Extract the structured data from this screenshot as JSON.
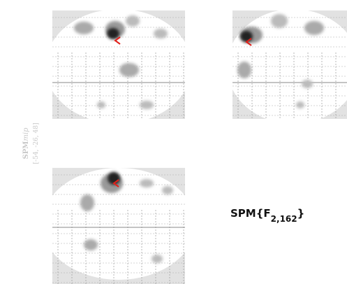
{
  "side_label": {
    "prefix": "SPM",
    "suffix": "mip",
    "coordinates": "[-54, -26, 48]"
  },
  "statistic": {
    "prefix": "SPM{F",
    "subscript": "2,162",
    "suffix": "}"
  }
}
